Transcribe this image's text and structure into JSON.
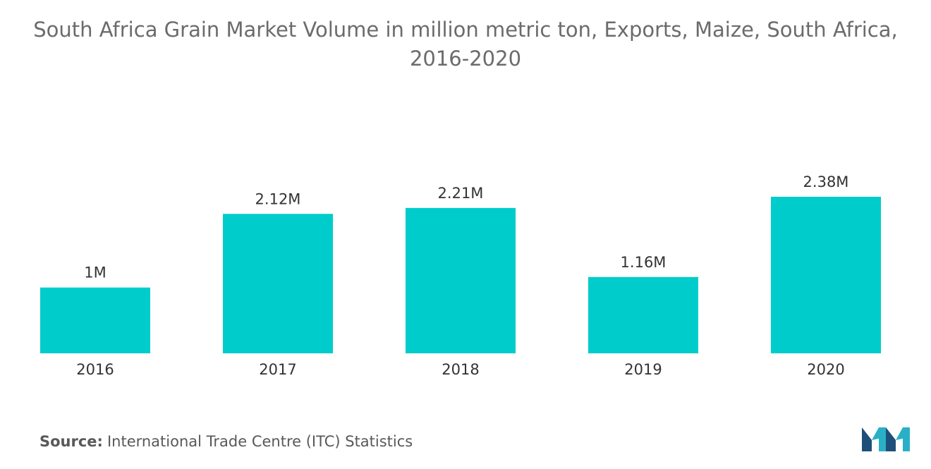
{
  "chart_data": {
    "type": "bar",
    "title": "South Africa Grain Market Volume in million metric ton, Exports, Maize, South Africa, 2016-2020",
    "categories": [
      "2016",
      "2017",
      "2018",
      "2019",
      "2020"
    ],
    "values": [
      1.0,
      2.12,
      2.21,
      1.16,
      2.38
    ],
    "data_labels": [
      "1M",
      "2.12M",
      "2.21M",
      "1.16M",
      "2.38M"
    ],
    "xlabel": "",
    "ylabel": "",
    "ylim": [
      0,
      2.38
    ],
    "grid": false,
    "bar_color": "#00cccc"
  },
  "source": {
    "label": "Source:",
    "text": "International Trade Centre (ITC) Statistics"
  },
  "logo": {
    "icon": "mordor-intelligence-logo-icon",
    "colors": [
      "#1e4f7a",
      "#2ab0c6"
    ]
  }
}
